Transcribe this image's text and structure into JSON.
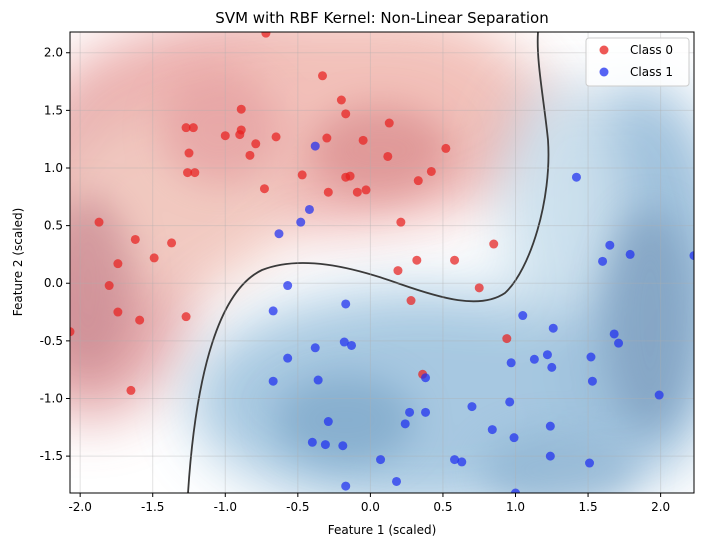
{
  "chart_data": {
    "type": "scatter",
    "title": "SVM with RBF Kernel: Non-Linear Separation",
    "xlabel": "Feature 1 (scaled)",
    "ylabel": "Feature 2 (scaled)",
    "xlim": [
      -2.07,
      2.23
    ],
    "ylim": [
      -1.82,
      2.18
    ],
    "x_ticks": [
      "-2.0",
      "-1.5",
      "-1.0",
      "-0.5",
      "0.0",
      "0.5",
      "1.0",
      "1.5",
      "2.0"
    ],
    "y_ticks": [
      "-1.5",
      "-1.0",
      "-0.5",
      "0.0",
      "0.5",
      "1.0",
      "1.5",
      "2.0"
    ],
    "grid": true,
    "legend_position": "top-right",
    "background": "decision-function contour fill (red = class 0 side, blue = class 1 side) with dark decision boundary line",
    "colors": {
      "class0": "#e8201e",
      "class1": "#1f2ff0",
      "boundary": "#3a3a3a",
      "red_region": "#e7a0a0",
      "blue_region": "#8fb9d9"
    },
    "series": [
      {
        "name": "Class 0",
        "points": [
          [
            -0.72,
            2.17
          ],
          [
            -0.33,
            1.8
          ],
          [
            -1.27,
            1.35
          ],
          [
            -1.22,
            1.35
          ],
          [
            -1.0,
            1.28
          ],
          [
            -0.9,
            1.29
          ],
          [
            -0.89,
            1.33
          ],
          [
            -0.89,
            1.51
          ],
          [
            -0.83,
            1.11
          ],
          [
            -0.79,
            1.21
          ],
          [
            -0.65,
            1.27
          ],
          [
            -0.2,
            1.59
          ],
          [
            -0.17,
            1.47
          ],
          [
            -0.3,
            1.26
          ],
          [
            -0.05,
            1.24
          ],
          [
            0.13,
            1.39
          ],
          [
            0.12,
            1.1
          ],
          [
            -1.25,
            1.13
          ],
          [
            -1.26,
            0.96
          ],
          [
            -1.21,
            0.96
          ],
          [
            -0.73,
            0.82
          ],
          [
            -0.47,
            0.94
          ],
          [
            -0.29,
            0.79
          ],
          [
            -0.17,
            0.92
          ],
          [
            -0.14,
            0.93
          ],
          [
            -0.09,
            0.79
          ],
          [
            -0.03,
            0.81
          ],
          [
            0.33,
            0.89
          ],
          [
            0.42,
            0.97
          ],
          [
            0.52,
            1.17
          ],
          [
            -1.87,
            0.53
          ],
          [
            -1.62,
            0.38
          ],
          [
            -1.74,
            0.17
          ],
          [
            -1.37,
            0.35
          ],
          [
            -1.49,
            0.22
          ],
          [
            -1.8,
            -0.02
          ],
          [
            -1.74,
            -0.25
          ],
          [
            -1.59,
            -0.32
          ],
          [
            -2.07,
            -0.42
          ],
          [
            -1.27,
            -0.29
          ],
          [
            -1.65,
            -0.93
          ],
          [
            0.21,
            0.53
          ],
          [
            0.19,
            0.11
          ],
          [
            0.32,
            0.2
          ],
          [
            0.58,
            0.2
          ],
          [
            0.85,
            0.34
          ],
          [
            0.28,
            -0.15
          ],
          [
            0.75,
            -0.04
          ],
          [
            0.94,
            -0.48
          ],
          [
            0.36,
            -0.79
          ]
        ]
      },
      {
        "name": "Class 1",
        "points": [
          [
            -0.38,
            1.19
          ],
          [
            -0.42,
            0.64
          ],
          [
            -0.48,
            0.53
          ],
          [
            -0.63,
            0.43
          ],
          [
            -0.57,
            -0.02
          ],
          [
            -0.67,
            -0.24
          ],
          [
            -0.57,
            -0.65
          ],
          [
            -0.67,
            -0.85
          ],
          [
            -0.17,
            -0.18
          ],
          [
            -0.18,
            -0.51
          ],
          [
            -0.13,
            -0.54
          ],
          [
            -0.38,
            -0.56
          ],
          [
            -0.36,
            -0.84
          ],
          [
            -0.29,
            -1.2
          ],
          [
            -0.4,
            -1.38
          ],
          [
            -0.31,
            -1.4
          ],
          [
            -0.19,
            -1.41
          ],
          [
            -0.17,
            -1.76
          ],
          [
            0.07,
            -1.53
          ],
          [
            0.18,
            -1.72
          ],
          [
            0.24,
            -1.22
          ],
          [
            0.27,
            -1.12
          ],
          [
            0.38,
            -1.12
          ],
          [
            0.38,
            -0.82
          ],
          [
            0.58,
            -1.53
          ],
          [
            0.63,
            -1.55
          ],
          [
            0.7,
            -1.07
          ],
          [
            0.84,
            -1.27
          ],
          [
            0.96,
            -1.03
          ],
          [
            0.97,
            -0.69
          ],
          [
            0.99,
            -1.34
          ],
          [
            1.0,
            -1.82
          ],
          [
            1.05,
            -0.28
          ],
          [
            1.13,
            -0.66
          ],
          [
            1.22,
            -0.62
          ],
          [
            1.25,
            -0.73
          ],
          [
            1.26,
            -0.39
          ],
          [
            1.24,
            -1.24
          ],
          [
            1.24,
            -1.5
          ],
          [
            1.42,
            0.92
          ],
          [
            1.52,
            -0.64
          ],
          [
            1.53,
            -0.85
          ],
          [
            1.51,
            -1.56
          ],
          [
            1.6,
            0.19
          ],
          [
            1.65,
            0.33
          ],
          [
            1.68,
            -0.44
          ],
          [
            1.71,
            -0.52
          ],
          [
            1.79,
            0.25
          ],
          [
            2.23,
            0.24
          ],
          [
            1.99,
            -0.97
          ]
        ]
      }
    ]
  },
  "legend": {
    "items": [
      {
        "label": "Class 0",
        "color": "#e8201e"
      },
      {
        "label": "Class 1",
        "color": "#1f2ff0"
      }
    ]
  }
}
